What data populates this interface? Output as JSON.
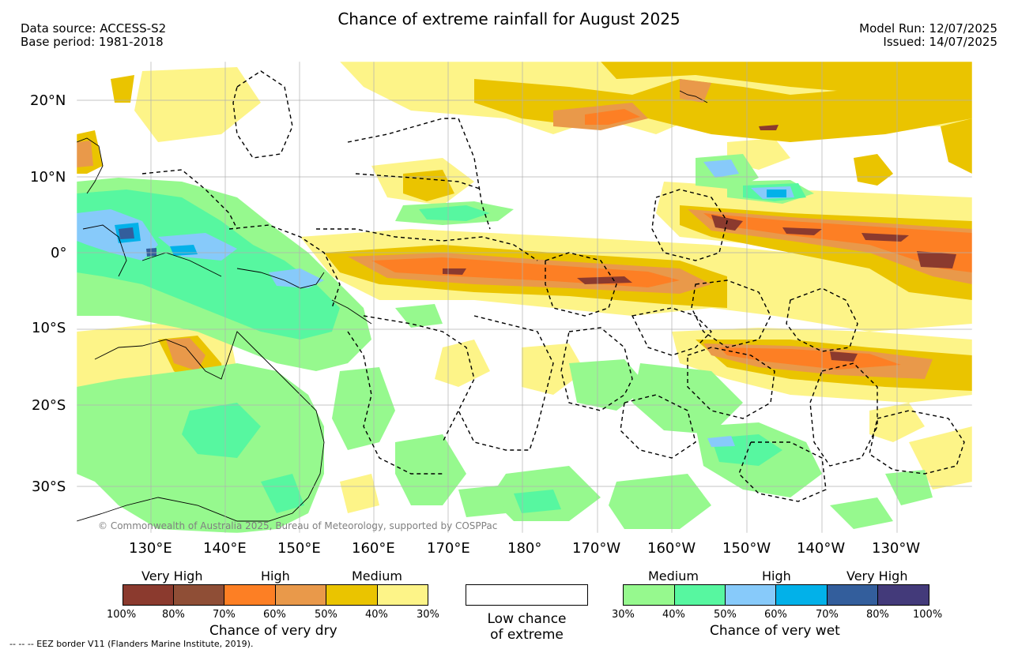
{
  "header": {
    "title": "Chance of extreme rainfall for August 2025",
    "data_source": "Data source: ACCESS-S2",
    "base_period": "Base period: 1981-2018",
    "model_run": "Model Run: 12/07/2025",
    "issued": "Issued: 14/07/2025"
  },
  "map": {
    "lat_labels": [
      "20°N",
      "10°N",
      "0°",
      "10°S",
      "20°S",
      "30°S"
    ],
    "lon_labels": [
      "130°E",
      "140°E",
      "150°E",
      "160°E",
      "170°E",
      "180°",
      "170°W",
      "160°W",
      "150°W",
      "140°W",
      "130°W"
    ],
    "copyright": "© Commonwealth of Australia 2025, Bureau of Meteorology, supported by COSPPac",
    "border_color": "#000000",
    "gridline_color": "#b0b0b0"
  },
  "legend": {
    "dry": {
      "categories": [
        "Very High",
        "High",
        "Medium"
      ],
      "ticks": [
        "100%",
        "80%",
        "70%",
        "60%",
        "50%",
        "40%",
        "30%"
      ],
      "colors": [
        "#8b3a2e",
        "#8f4e36",
        "#fd7f24",
        "#e9994a",
        "#eac400",
        "#fdf488"
      ],
      "title": "Chance of very dry"
    },
    "neutral": {
      "line1": "Low chance",
      "line2": "of extreme"
    },
    "wet": {
      "categories": [
        "Medium",
        "High",
        "Very High"
      ],
      "ticks": [
        "30%",
        "40%",
        "50%",
        "60%",
        "70%",
        "80%",
        "100%"
      ],
      "colors": [
        "#96f98e",
        "#57f7a0",
        "#87cafa",
        "#02b1e9",
        "#335e9c",
        "#433a7a"
      ],
      "title": "Chance of very wet"
    }
  },
  "footnote": "-- -- -- EEZ border V11 (Flanders Marine Institute, 2019)."
}
